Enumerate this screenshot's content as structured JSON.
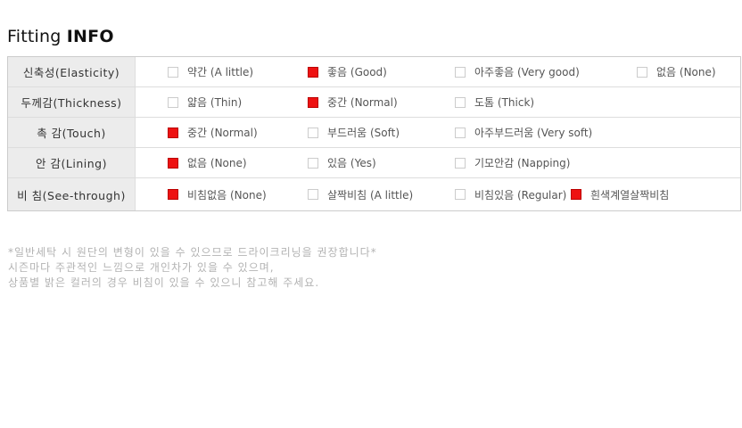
{
  "title": {
    "prefix": "Fitting",
    "emphasis": "INFO"
  },
  "colors": {
    "checked_box": "#ee1111",
    "unchecked_border": "#cccccc",
    "label_cell_bg": "#ececec"
  },
  "table": {
    "rows": [
      {
        "label": "신축성(Elasticity)",
        "options": [
          {
            "label": "약간 (A little)",
            "checked": false
          },
          {
            "label": "좋음 (Good)",
            "checked": true
          },
          {
            "label": "아주좋음 (Very good)",
            "checked": false
          },
          {
            "label": "없음 (None)",
            "checked": false
          }
        ]
      },
      {
        "label": "두께감(Thickness)",
        "options": [
          {
            "label": "얇음 (Thin)",
            "checked": false
          },
          {
            "label": "중간 (Normal)",
            "checked": true
          },
          {
            "label": "도톰 (Thick)",
            "checked": false
          }
        ]
      },
      {
        "label": "촉 감(Touch)",
        "options": [
          {
            "label": "중간 (Normal)",
            "checked": true
          },
          {
            "label": "부드러움 (Soft)",
            "checked": false
          },
          {
            "label": "아주부드러움 (Very soft)",
            "checked": false
          }
        ]
      },
      {
        "label": "안 감(Lining)",
        "options": [
          {
            "label": "없음 (None)",
            "checked": true
          },
          {
            "label": "있음 (Yes)",
            "checked": false
          },
          {
            "label": "기모안감 (Napping)",
            "checked": false
          }
        ]
      },
      {
        "label": "비 침(See-through)",
        "options": [
          {
            "label": "비침없음 (None)",
            "checked": true
          },
          {
            "label": "살짝비침 (A little)",
            "checked": false
          },
          {
            "label": "비침있음 (Regular)",
            "checked": false
          },
          {
            "label": "흰색계열살짝비침",
            "checked": true
          }
        ]
      }
    ]
  },
  "notes": {
    "lines": [
      "*일반세탁 시 원단의 변형이 있을 수 있으므로 드라이크리닝을 권장합니다*",
      "시즌마다 주관적인 느낌으로 개인차가 있을 수 있으며,",
      "상품별 밝은 컬러의 경우 비침이 있을 수 있으니 참고해 주세요."
    ]
  }
}
